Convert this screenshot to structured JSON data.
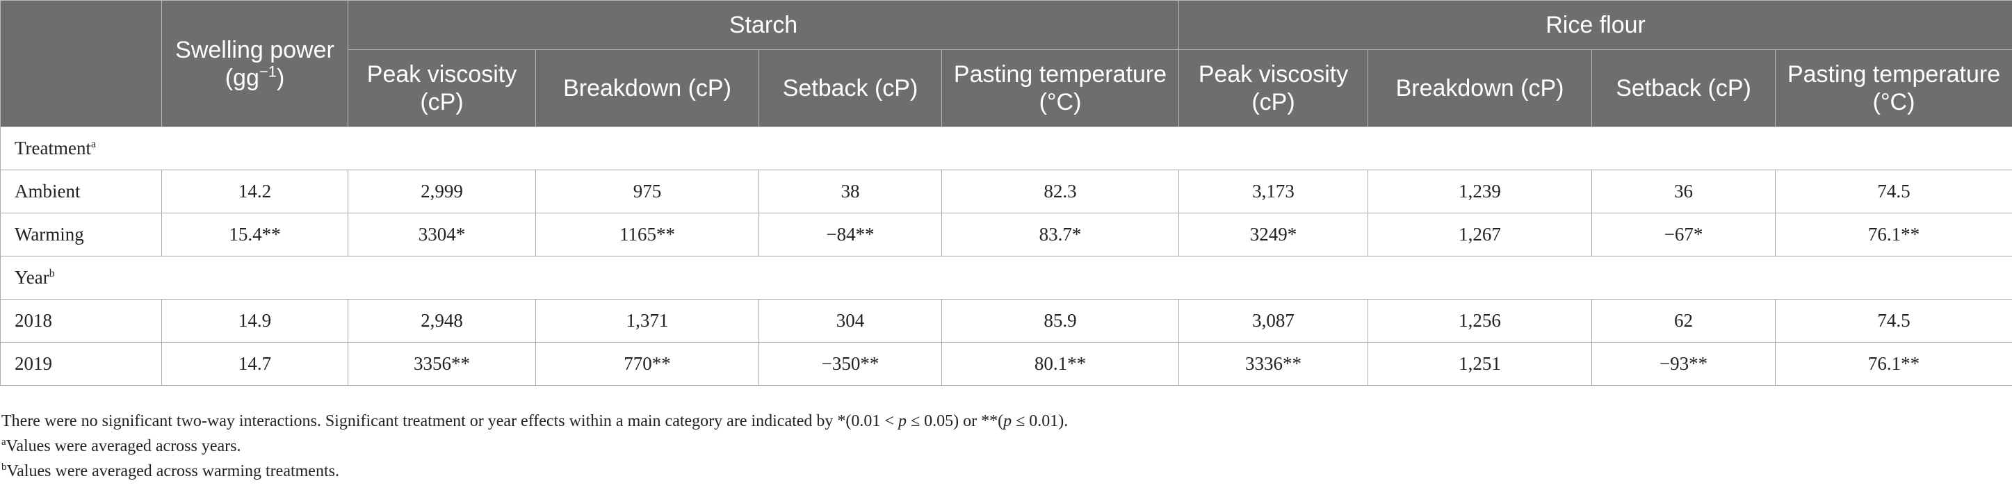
{
  "table": {
    "header": {
      "swelling_label": "Swelling power (gg",
      "swelling_sup": "−1",
      "swelling_close": ")",
      "group_starch": "Starch",
      "group_rice": "Rice flour",
      "starch_cols": [
        "Peak viscosity (cP)",
        "Breakdown (cP)",
        "Setback (cP)",
        "Pasting temperature (°C)"
      ],
      "rice_cols": [
        "Peak viscosity (cP)",
        "Breakdown (cP)",
        "Setback (cP)",
        "Pasting temperature (°C)"
      ]
    },
    "sections": [
      {
        "label": "Treatment",
        "sup": "a",
        "rows": [
          {
            "label": "Ambient",
            "values": [
              "14.2",
              "2,999",
              "975",
              "38",
              "82.3",
              "3,173",
              "1,239",
              "36",
              "74.5"
            ]
          },
          {
            "label": "Warming",
            "values": [
              "15.4**",
              "3304*",
              "1165**",
              "−84**",
              "83.7*",
              "3249*",
              "1,267",
              "−67*",
              "76.1**"
            ]
          }
        ]
      },
      {
        "label": "Year",
        "sup": "b",
        "rows": [
          {
            "label": "2018",
            "values": [
              "14.9",
              "2,948",
              "1,371",
              "304",
              "85.9",
              "3,087",
              "1,256",
              "62",
              "74.5"
            ]
          },
          {
            "label": "2019",
            "values": [
              "14.7",
              "3356**",
              "770**",
              "−350**",
              "80.1**",
              "3336**",
              "1,251",
              "−93**",
              "76.1**"
            ]
          }
        ]
      }
    ]
  },
  "footnotes": {
    "line1_a": "There were no significant two-way interactions. Significant treatment or year effects within a main category are indicated by *(0.01 < ",
    "line1_p1": "p",
    "line1_b": " ≤ 0.05) or **(",
    "line1_p2": "p",
    "line1_c": " ≤ 0.01).",
    "note_a_sup": "a",
    "note_a": "Values were averaged across years.",
    "note_b_sup": "b",
    "note_b": "Values were averaged across warming treatments."
  }
}
